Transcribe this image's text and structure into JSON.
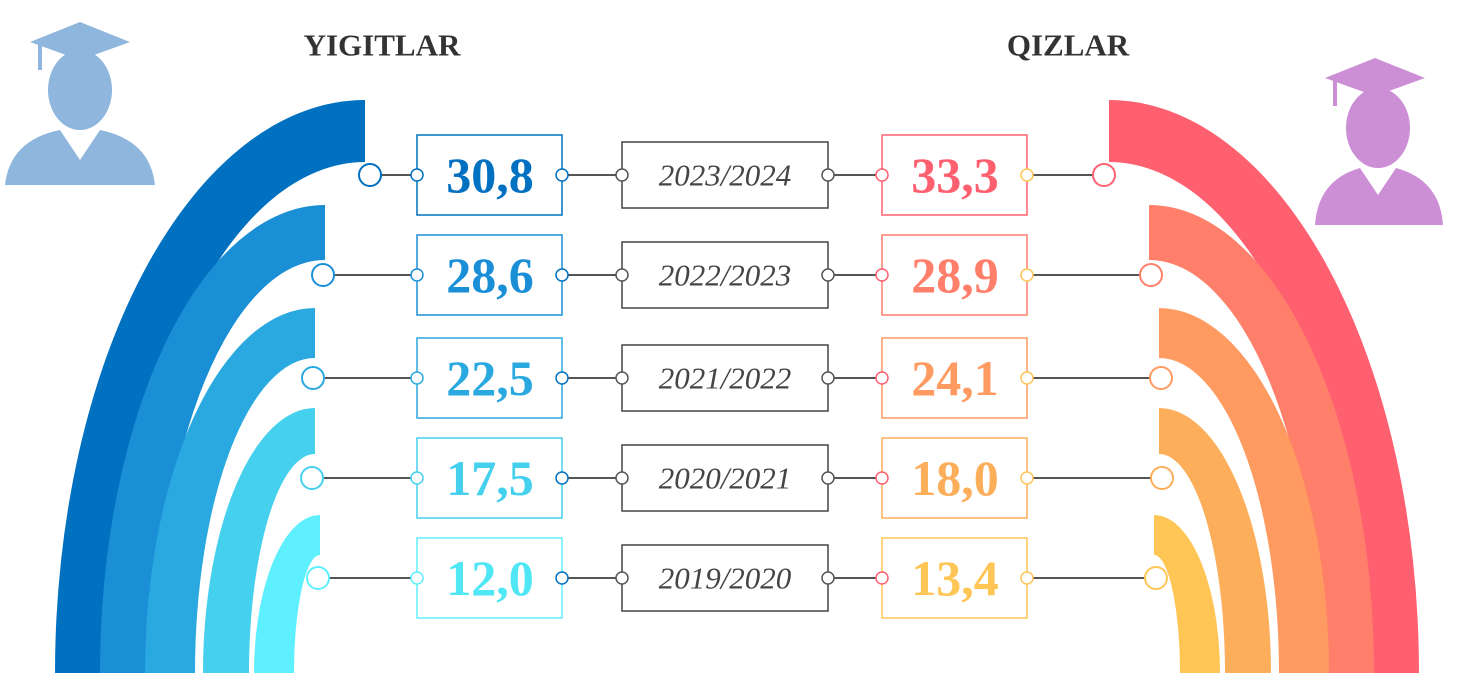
{
  "headers": {
    "left": "YIGITLAR",
    "right": "QIZLAR"
  },
  "rows": [
    {
      "year": "2023/2024",
      "left": "30,8",
      "right": "33,3"
    },
    {
      "year": "2022/2023",
      "left": "28,6",
      "right": "28,9"
    },
    {
      "year": "2021/2022",
      "left": "22,5",
      "right": "24,1"
    },
    {
      "year": "2020/2021",
      "left": "17,5",
      "right": "18,0"
    },
    {
      "year": "2019/2020",
      "left": "12,0",
      "right": "13,4"
    }
  ]
}
